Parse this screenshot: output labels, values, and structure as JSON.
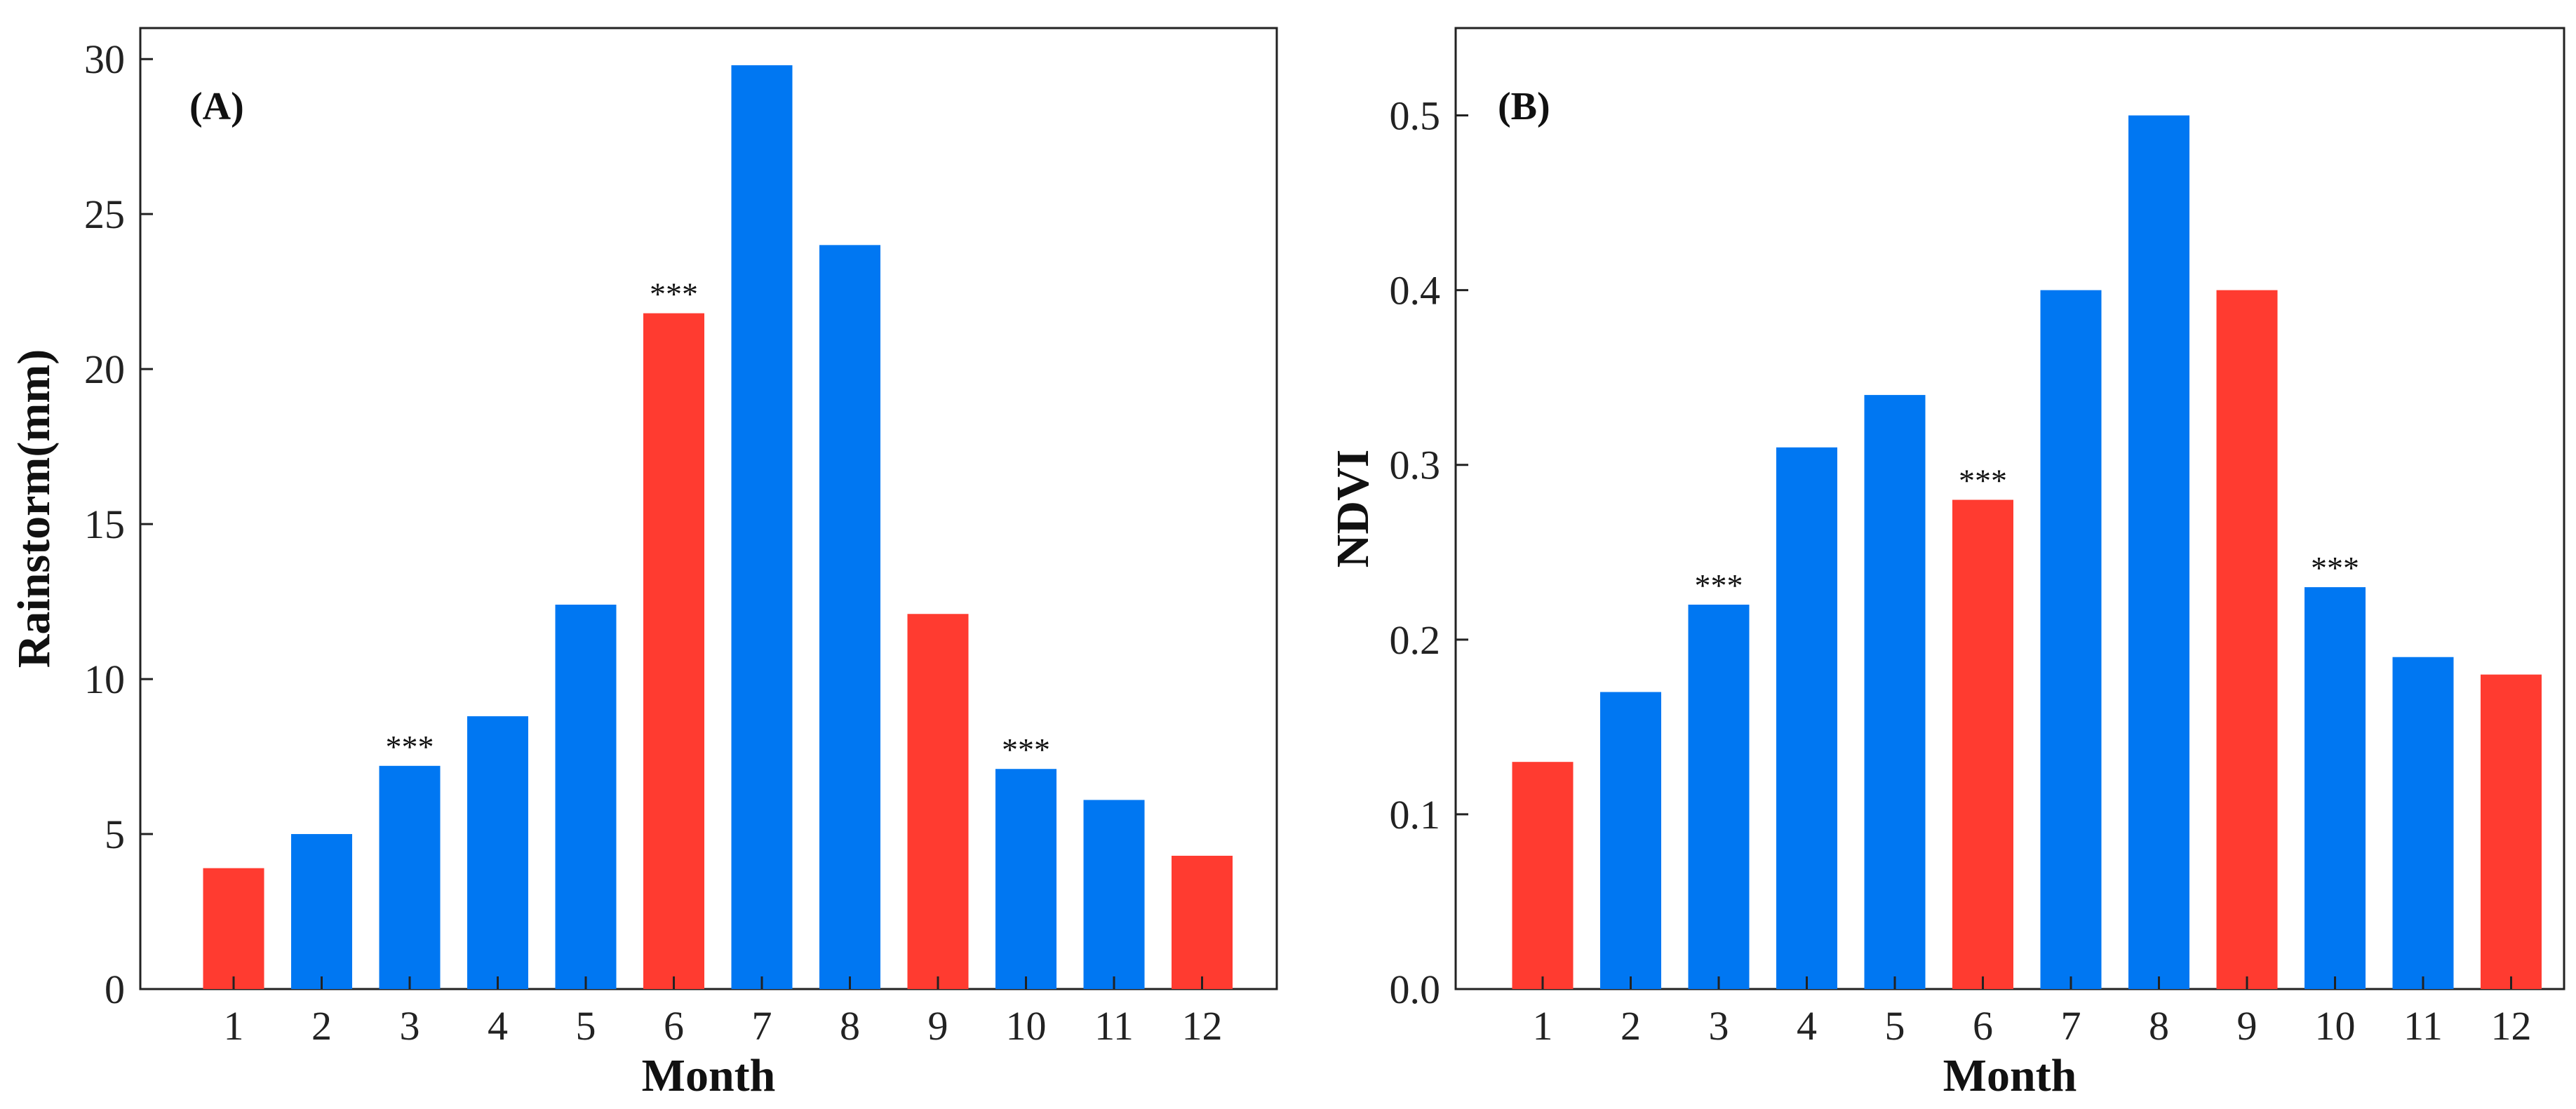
{
  "colors": {
    "blue": "#0077f2",
    "red": "#ff3b30"
  },
  "chart_data": [
    {
      "type": "bar",
      "panel_label": "(A)",
      "xlabel": "Month",
      "ylabel": "Rainstorm(mm)",
      "categories": [
        "1",
        "2",
        "3",
        "4",
        "5",
        "6",
        "7",
        "8",
        "9",
        "10",
        "11",
        "12"
      ],
      "values": [
        3.9,
        5.0,
        7.2,
        8.8,
        12.4,
        21.8,
        29.8,
        24.0,
        12.1,
        7.1,
        6.1,
        4.3
      ],
      "bar_colors": [
        "red",
        "blue",
        "blue",
        "blue",
        "blue",
        "red",
        "blue",
        "blue",
        "red",
        "blue",
        "blue",
        "red"
      ],
      "significance": [
        "",
        "",
        "***",
        "",
        "",
        "***",
        "",
        "",
        "",
        "***",
        "",
        ""
      ],
      "ylim": [
        0,
        31
      ],
      "yticks": [
        0,
        5,
        10,
        15,
        20,
        25,
        30
      ],
      "ytick_labels": [
        "0",
        "5",
        "10",
        "15",
        "20",
        "25",
        "30"
      ]
    },
    {
      "type": "bar",
      "panel_label": "(B)",
      "xlabel": "Month",
      "ylabel": "NDVI",
      "categories": [
        "1",
        "2",
        "3",
        "4",
        "5",
        "6",
        "7",
        "8",
        "9",
        "10",
        "11",
        "12"
      ],
      "values": [
        0.13,
        0.17,
        0.22,
        0.31,
        0.34,
        0.28,
        0.4,
        0.5,
        0.4,
        0.23,
        0.19,
        0.18
      ],
      "bar_colors": [
        "red",
        "blue",
        "blue",
        "blue",
        "blue",
        "red",
        "blue",
        "blue",
        "red",
        "blue",
        "blue",
        "red"
      ],
      "significance": [
        "",
        "",
        "***",
        "",
        "",
        "***",
        "",
        "",
        "",
        "***",
        "",
        ""
      ],
      "ylim": [
        0,
        0.55
      ],
      "yticks": [
        0,
        0.1,
        0.2,
        0.3,
        0.4,
        0.5
      ],
      "ytick_labels": [
        "0.0",
        "0.1",
        "0.2",
        "0.3",
        "0.4",
        "0.5"
      ]
    }
  ]
}
